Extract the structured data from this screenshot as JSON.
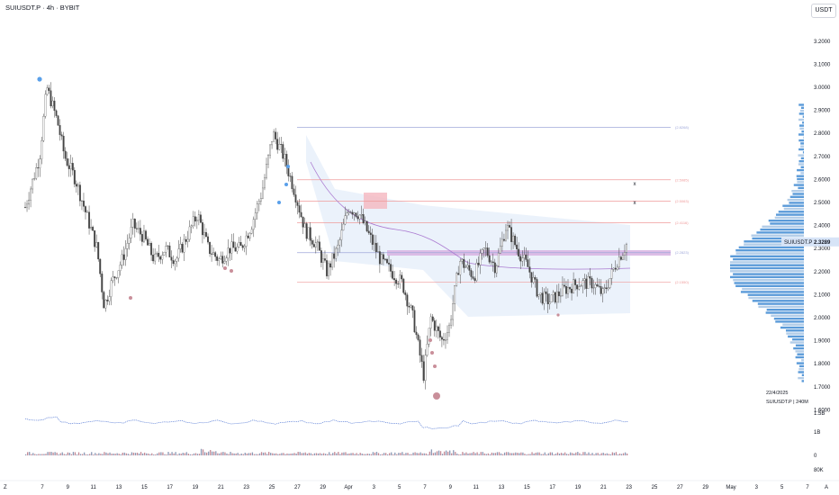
{
  "header": {
    "title": "SUIUSDT.P · 4h · BYBIT",
    "currency_button": "USDT"
  },
  "price_tag": {
    "label": "SUIUSDT.P",
    "value": "2.3289"
  },
  "info": {
    "date": "22/4/2025",
    "series": "SUIUSDT.P | 240M"
  },
  "chart_data": {
    "type": "candlestick",
    "y_axis": {
      "ticks": [
        "3.2000",
        "3.1000",
        "3.0000",
        "2.9000",
        "2.8000",
        "2.7000",
        "2.6000",
        "2.5000",
        "2.4000",
        "2.3000",
        "2.2000",
        "2.1000",
        "2.0000",
        "1.9000",
        "1.8000",
        "1.7000",
        "1.6000"
      ],
      "ylim": [
        1.6,
        3.25
      ]
    },
    "x_axis": {
      "ticks": [
        "7",
        "9",
        "11",
        "13",
        "15",
        "17",
        "19",
        "21",
        "23",
        "25",
        "27",
        "29",
        "Apr",
        "3",
        "5",
        "7",
        "9",
        "11",
        "13",
        "15",
        "17",
        "19",
        "21",
        "23",
        "25",
        "27",
        "29",
        "May",
        "3",
        "5",
        "7"
      ]
    },
    "corner_left": "Z",
    "corner_right": "A",
    "fib_levels": [
      {
        "label": "(2.8268)",
        "value": 2.8268,
        "color": "#9fa8da"
      },
      {
        "label": "(2.5985)",
        "value": 2.5985,
        "color": "#ef9a9a"
      },
      {
        "label": "(2.5063)",
        "value": 2.5063,
        "color": "#ef9a9a"
      },
      {
        "label": "(2.4116)",
        "value": 2.4116,
        "color": "#ef9a9a"
      },
      {
        "label": "(2.2823)",
        "value": 2.2823,
        "color": "#9fa8da"
      },
      {
        "label": "(2.1550)",
        "value": 2.155,
        "color": "#ef9a9a"
      }
    ],
    "markers": [
      "x",
      "x"
    ],
    "path": [
      [
        0,
        2.48
      ],
      [
        8,
        2.7
      ],
      [
        12,
        3.0
      ],
      [
        18,
        2.85
      ],
      [
        22,
        2.7
      ],
      [
        28,
        2.6
      ],
      [
        34,
        2.45
      ],
      [
        40,
        2.3
      ],
      [
        44,
        2.05
      ],
      [
        48,
        2.15
      ],
      [
        54,
        2.25
      ],
      [
        60,
        2.4
      ],
      [
        66,
        2.35
      ],
      [
        72,
        2.25
      ],
      [
        78,
        2.3
      ],
      [
        84,
        2.25
      ],
      [
        90,
        2.35
      ],
      [
        96,
        2.45
      ],
      [
        102,
        2.3
      ],
      [
        108,
        2.25
      ],
      [
        114,
        2.3
      ],
      [
        120,
        2.3
      ],
      [
        126,
        2.4
      ],
      [
        132,
        2.55
      ],
      [
        138,
        2.8
      ],
      [
        144,
        2.7
      ],
      [
        150,
        2.55
      ],
      [
        156,
        2.38
      ],
      [
        162,
        2.32
      ],
      [
        168,
        2.2
      ],
      [
        174,
        2.3
      ],
      [
        180,
        2.48
      ],
      [
        186,
        2.45
      ],
      [
        192,
        2.35
      ],
      [
        198,
        2.25
      ],
      [
        204,
        2.2
      ],
      [
        210,
        2.15
      ],
      [
        216,
        2.0
      ],
      [
        222,
        1.75
      ],
      [
        226,
        2.0
      ],
      [
        232,
        1.9
      ],
      [
        236,
        1.95
      ],
      [
        242,
        2.25
      ],
      [
        250,
        2.18
      ],
      [
        256,
        2.3
      ],
      [
        262,
        2.22
      ],
      [
        268,
        2.4
      ],
      [
        274,
        2.3
      ],
      [
        280,
        2.22
      ],
      [
        286,
        2.1
      ],
      [
        292,
        2.07
      ],
      [
        300,
        2.12
      ],
      [
        308,
        2.15
      ],
      [
        316,
        2.15
      ],
      [
        322,
        2.1
      ],
      [
        330,
        2.25
      ],
      [
        336,
        2.33
      ]
    ],
    "volume_axis": {
      "ticks": [
        "1.5B",
        "1B",
        "0",
        "80K"
      ]
    }
  }
}
